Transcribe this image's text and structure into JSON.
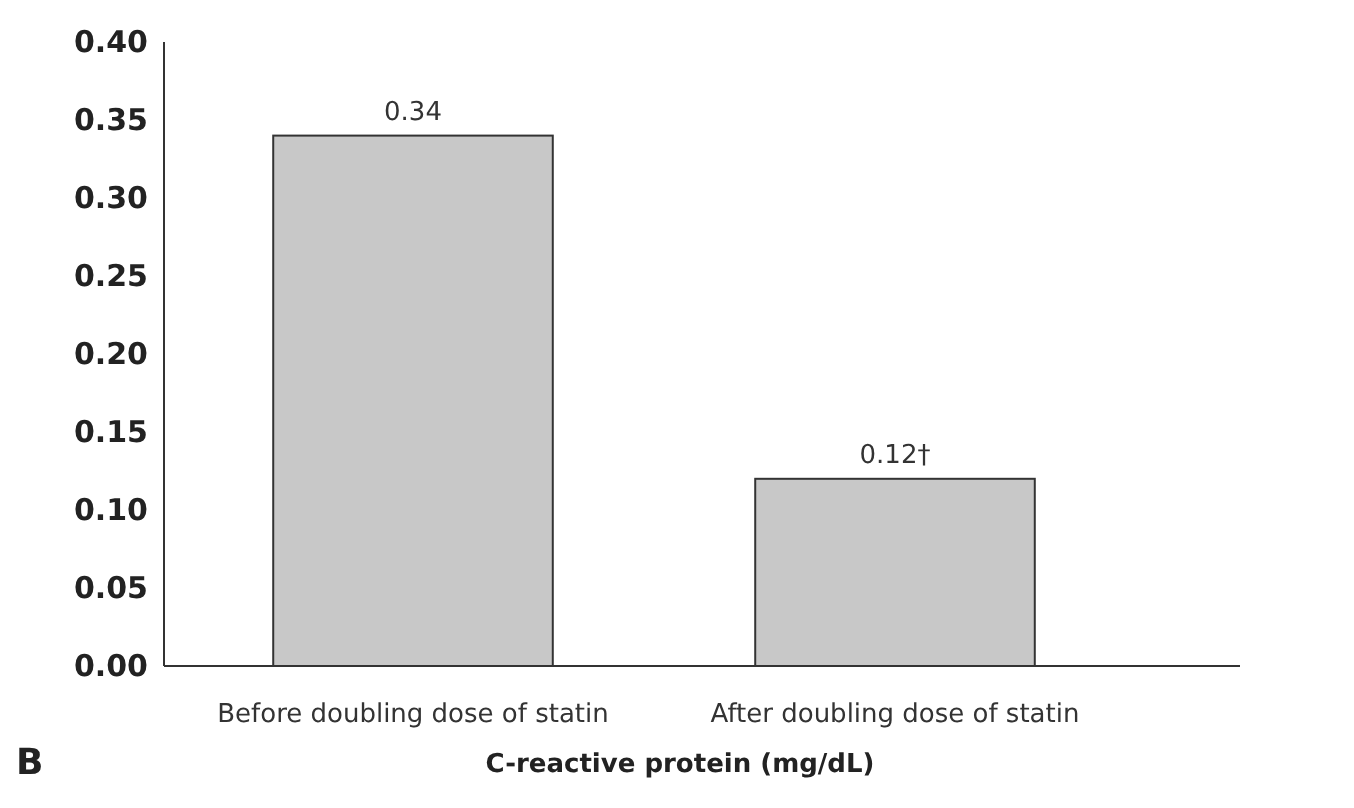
{
  "chart_data": {
    "type": "bar",
    "xlabel": "C-reactive protein (mg/dL)",
    "categories": [
      "Before doubling dose of statin",
      "After doubling dose of statin"
    ],
    "values": [
      0.34,
      0.12
    ],
    "value_labels": [
      "0.34",
      "0.12†"
    ],
    "color": "#c8c8c8",
    "ylim": [
      0,
      0.4
    ],
    "yticks": [
      {
        "value": 0,
        "label": "0.00"
      },
      {
        "value": 0.05,
        "label": "0.05"
      },
      {
        "value": 0.1,
        "label": "0.10"
      },
      {
        "value": 0.15,
        "label": "0.15"
      },
      {
        "value": 0.2,
        "label": "0.20"
      },
      {
        "value": 0.25,
        "label": "0.25"
      },
      {
        "value": 0.3,
        "label": "0.30"
      },
      {
        "value": 0.35,
        "label": "0.35"
      },
      {
        "value": 0.4,
        "label": "0.40"
      }
    ],
    "grid": false,
    "annotations": [
      "B"
    ]
  }
}
